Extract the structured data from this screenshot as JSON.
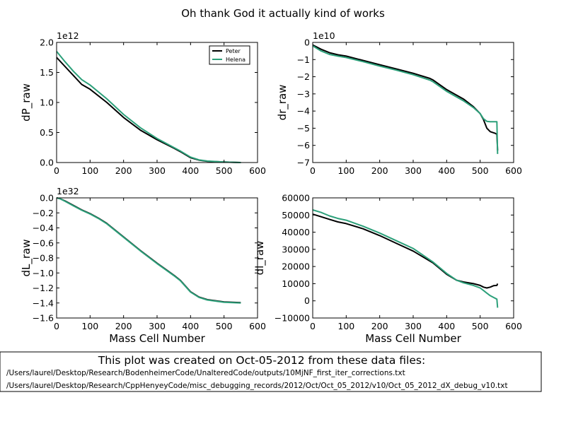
{
  "suptitle": "Oh thank God it actually kind of works",
  "caption": {
    "title": "This plot was created on Oct-05-2012 from these data files:",
    "lines": [
      "/Users/laurel/Desktop/Research/BodenheimerCode/UnalteredCode/outputs/10MjNF_first_iter_corrections.txt",
      "/Users/laurel/Desktop/Research/CppHenyeyCode/misc_debugging_records/2012/Oct/Oct_05_2012/v10/Oct_05_2012_dX_debug_v10.txt"
    ]
  },
  "colors": {
    "peter": "#000000",
    "helena": "#2ca07a"
  },
  "chart_data": [
    {
      "type": "line",
      "ylabel": "dP_raw",
      "xlabel": "",
      "offset_text": "1e12",
      "xlim": [
        0,
        600
      ],
      "ylim": [
        0,
        2.0
      ],
      "xticks": [
        "0",
        "100",
        "200",
        "300",
        "400",
        "500",
        "600"
      ],
      "yticks": [
        "0.0",
        "0.5",
        "1.0",
        "1.5",
        "2.0"
      ],
      "ytick_values": [
        0,
        0.5,
        1.0,
        1.5,
        2.0
      ],
      "legend": {
        "position": "upper-right",
        "entries": [
          "Peter",
          "Helena"
        ]
      },
      "series": [
        {
          "name": "Peter",
          "x": [
            0,
            25,
            50,
            75,
            100,
            150,
            200,
            250,
            300,
            350,
            370,
            400,
            425,
            450,
            500,
            550
          ],
          "values": [
            1.75,
            1.6,
            1.45,
            1.3,
            1.22,
            1.0,
            0.75,
            0.54,
            0.38,
            0.24,
            0.18,
            0.08,
            0.04,
            0.02,
            0.008,
            0.0
          ]
        },
        {
          "name": "Helena",
          "x": [
            0,
            25,
            50,
            75,
            100,
            150,
            200,
            250,
            300,
            350,
            370,
            400,
            425,
            450,
            500,
            550
          ],
          "values": [
            1.85,
            1.68,
            1.52,
            1.38,
            1.29,
            1.06,
            0.8,
            0.58,
            0.4,
            0.25,
            0.19,
            0.09,
            0.045,
            0.025,
            0.01,
            0.0
          ]
        }
      ]
    },
    {
      "type": "line",
      "ylabel": "dr_raw",
      "xlabel": "",
      "offset_text": "1e10",
      "xlim": [
        0,
        600
      ],
      "ylim": [
        -7,
        0
      ],
      "xticks": [
        "0",
        "100",
        "200",
        "300",
        "400",
        "500",
        "600"
      ],
      "yticks": [
        "0",
        "−1",
        "−2",
        "−3",
        "−4",
        "−5",
        "−6",
        "−7"
      ],
      "ytick_values": [
        0,
        -1,
        -2,
        -3,
        -4,
        -5,
        -6,
        -7
      ],
      "series": [
        {
          "name": "Peter",
          "x": [
            0,
            25,
            50,
            75,
            100,
            150,
            200,
            250,
            300,
            350,
            360,
            400,
            450,
            480,
            500,
            510,
            520,
            530,
            545,
            550,
            552
          ],
          "values": [
            -0.15,
            -0.4,
            -0.6,
            -0.72,
            -0.8,
            -1.05,
            -1.3,
            -1.55,
            -1.8,
            -2.1,
            -2.2,
            -2.75,
            -3.3,
            -3.75,
            -4.15,
            -4.5,
            -5.0,
            -5.2,
            -5.3,
            -5.35,
            -6.3
          ]
        },
        {
          "name": "Helena",
          "x": [
            0,
            25,
            50,
            75,
            100,
            150,
            200,
            250,
            300,
            350,
            360,
            400,
            450,
            480,
            500,
            510,
            520,
            530,
            545,
            550,
            552
          ],
          "values": [
            -0.2,
            -0.5,
            -0.7,
            -0.8,
            -0.88,
            -1.12,
            -1.38,
            -1.62,
            -1.88,
            -2.2,
            -2.3,
            -2.85,
            -3.4,
            -3.8,
            -4.15,
            -4.45,
            -4.6,
            -4.62,
            -4.62,
            -4.62,
            -6.5
          ]
        }
      ]
    },
    {
      "type": "line",
      "ylabel": "dL_raw",
      "xlabel": "Mass Cell Number",
      "offset_text": "1e32",
      "xlim": [
        0,
        600
      ],
      "ylim": [
        -1.6,
        0.0
      ],
      "xticks": [
        "0",
        "100",
        "200",
        "300",
        "400",
        "500",
        "600"
      ],
      "yticks": [
        "0.0",
        "−0.2",
        "−0.4",
        "−0.6",
        "−0.8",
        "−1.0",
        "−1.2",
        "−1.4",
        "−1.6"
      ],
      "ytick_values": [
        0,
        -0.2,
        -0.4,
        -0.6,
        -0.8,
        -1.0,
        -1.2,
        -1.4,
        -1.6
      ],
      "series": [
        {
          "name": "Peter",
          "x": [
            0,
            10,
            25,
            50,
            75,
            100,
            125,
            150,
            200,
            250,
            300,
            350,
            370,
            400,
            425,
            450,
            500,
            550
          ],
          "values": [
            0.0,
            -0.01,
            -0.04,
            -0.1,
            -0.16,
            -0.21,
            -0.27,
            -0.34,
            -0.52,
            -0.7,
            -0.87,
            -1.03,
            -1.1,
            -1.25,
            -1.32,
            -1.355,
            -1.385,
            -1.395
          ]
        },
        {
          "name": "Helena",
          "x": [
            0,
            10,
            25,
            50,
            75,
            100,
            125,
            150,
            200,
            250,
            300,
            350,
            370,
            400,
            425,
            450,
            500,
            550
          ],
          "values": [
            0.0,
            -0.01,
            -0.045,
            -0.105,
            -0.165,
            -0.215,
            -0.275,
            -0.345,
            -0.525,
            -0.705,
            -0.875,
            -1.035,
            -1.105,
            -1.255,
            -1.325,
            -1.36,
            -1.39,
            -1.4
          ]
        }
      ]
    },
    {
      "type": "line",
      "ylabel": "dl_raw",
      "xlabel": "Mass Cell Number",
      "offset_text": "",
      "xlim": [
        0,
        600
      ],
      "ylim": [
        -10000,
        60000
      ],
      "xticks": [
        "0",
        "100",
        "200",
        "300",
        "400",
        "500",
        "600"
      ],
      "yticks": [
        "60000",
        "50000",
        "40000",
        "30000",
        "20000",
        "10000",
        "0",
        "−10000"
      ],
      "ytick_values": [
        60000,
        50000,
        40000,
        30000,
        20000,
        10000,
        0,
        -10000
      ],
      "series": [
        {
          "name": "Peter",
          "x": [
            0,
            25,
            50,
            75,
            100,
            150,
            200,
            250,
            300,
            360,
            400,
            430,
            450,
            480,
            500,
            510,
            520,
            530,
            540,
            550,
            552
          ],
          "values": [
            50500,
            49000,
            47500,
            46000,
            45000,
            42000,
            38000,
            33500,
            29000,
            22000,
            15500,
            12000,
            11000,
            10000,
            9000,
            8000,
            7500,
            8000,
            8800,
            9000,
            10000
          ]
        },
        {
          "name": "Helena",
          "x": [
            0,
            25,
            50,
            75,
            100,
            150,
            200,
            250,
            300,
            360,
            400,
            430,
            450,
            480,
            500,
            510,
            520,
            530,
            540,
            550,
            552
          ],
          "values": [
            53000,
            51500,
            49500,
            48000,
            47000,
            43500,
            39500,
            35000,
            30500,
            22500,
            16000,
            12000,
            10500,
            9000,
            7500,
            6000,
            4500,
            3000,
            2000,
            1000,
            -4000
          ]
        }
      ]
    }
  ]
}
